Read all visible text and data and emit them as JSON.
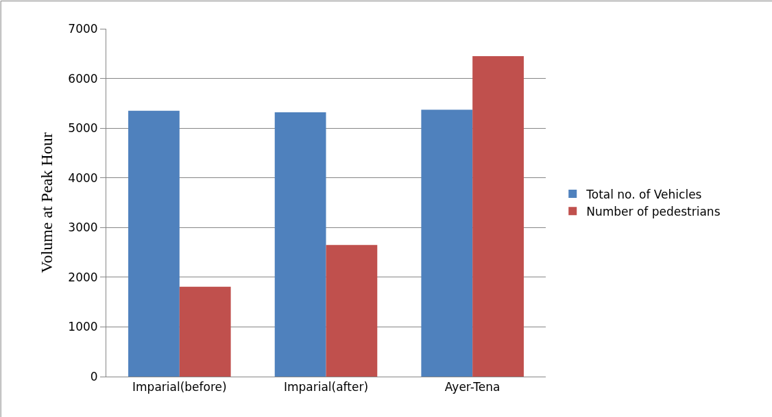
{
  "chart_data": {
    "type": "bar",
    "ylabel": "Volume at Peak Hour",
    "categories": [
      "Imparial(before)",
      "Imparial(after)",
      "Ayer-Tena"
    ],
    "series": [
      {
        "name": "Total no. of Vehicles",
        "color": "#4f81bd",
        "values": [
          5350,
          5320,
          5370
        ]
      },
      {
        "name": "Number of pedestrians",
        "color": "#c0504d",
        "values": [
          1810,
          2650,
          6450
        ]
      }
    ],
    "ylim": [
      0,
      7000
    ],
    "yticks": [
      0,
      1000,
      2000,
      3000,
      4000,
      5000,
      6000,
      7000
    ],
    "grid": "y",
    "legend": "right"
  }
}
